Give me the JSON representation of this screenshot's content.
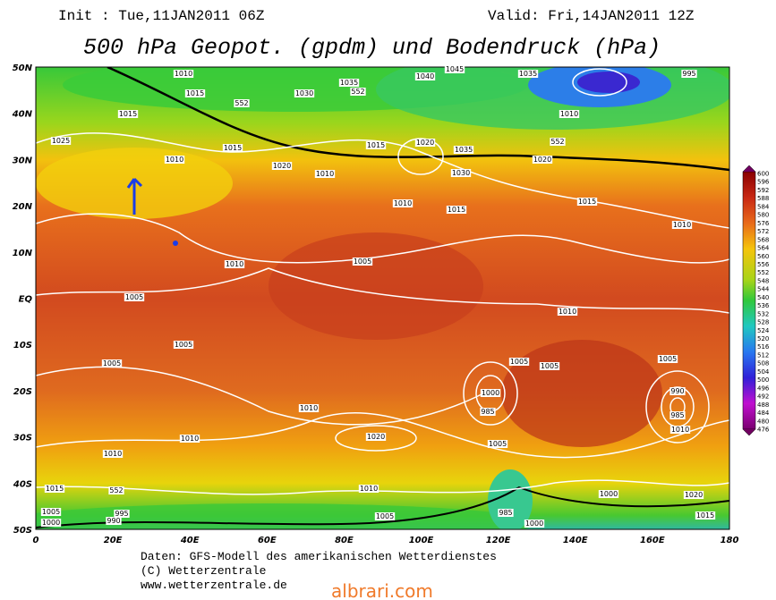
{
  "header": {
    "init": "Init : Tue,11JAN2011 06Z",
    "valid": "Valid: Fri,14JAN2011 12Z",
    "title": "500 hPa Geopot. (gpdm) und Bodendruck (hPa)"
  },
  "map": {
    "lat_labels": [
      "50N",
      "40N",
      "30N",
      "20N",
      "10N",
      "EQ",
      "10S",
      "20S",
      "30S",
      "40S",
      "50S"
    ],
    "lon_labels": [
      "0",
      "20E",
      "40E",
      "60E",
      "80E",
      "100E",
      "120E",
      "140E",
      "160E",
      "180"
    ],
    "isobar_labels": [
      "1010",
      "1015",
      "1015",
      "1025",
      "1015",
      "1010",
      "1020",
      "1010",
      "1015",
      "1020",
      "1035",
      "1030",
      "1035",
      "1030",
      "1040",
      "1045",
      "1035",
      "995",
      "1010",
      "1020",
      "1015",
      "1010",
      "1015",
      "1010",
      "1005",
      "1010",
      "1005",
      "1010",
      "1005",
      "1005",
      "1005",
      "1005",
      "1010",
      "1000",
      "985",
      "1005",
      "990",
      "985",
      "1010",
      "1020",
      "1010",
      "1010",
      "1005",
      "1015",
      "1005",
      "1000",
      "995",
      "990",
      "1000",
      "1020",
      "1015",
      "985",
      "1000",
      "1010",
      "1005",
      "552",
      "552",
      "552",
      "552"
    ]
  },
  "colorbar": {
    "labels": [
      "600",
      "596",
      "592",
      "588",
      "584",
      "580",
      "576",
      "572",
      "568",
      "564",
      "560",
      "556",
      "552",
      "548",
      "544",
      "540",
      "536",
      "532",
      "528",
      "524",
      "520",
      "516",
      "512",
      "508",
      "504",
      "500",
      "496",
      "492",
      "488",
      "484",
      "480",
      "476"
    ]
  },
  "footer": {
    "lines": [
      "Daten: GFS-Modell des amerikanischen Wetterdienstes",
      "(C) Wetterzentrale",
      "www.wetterzentrale.de"
    ]
  },
  "watermark": "albrari.com"
}
